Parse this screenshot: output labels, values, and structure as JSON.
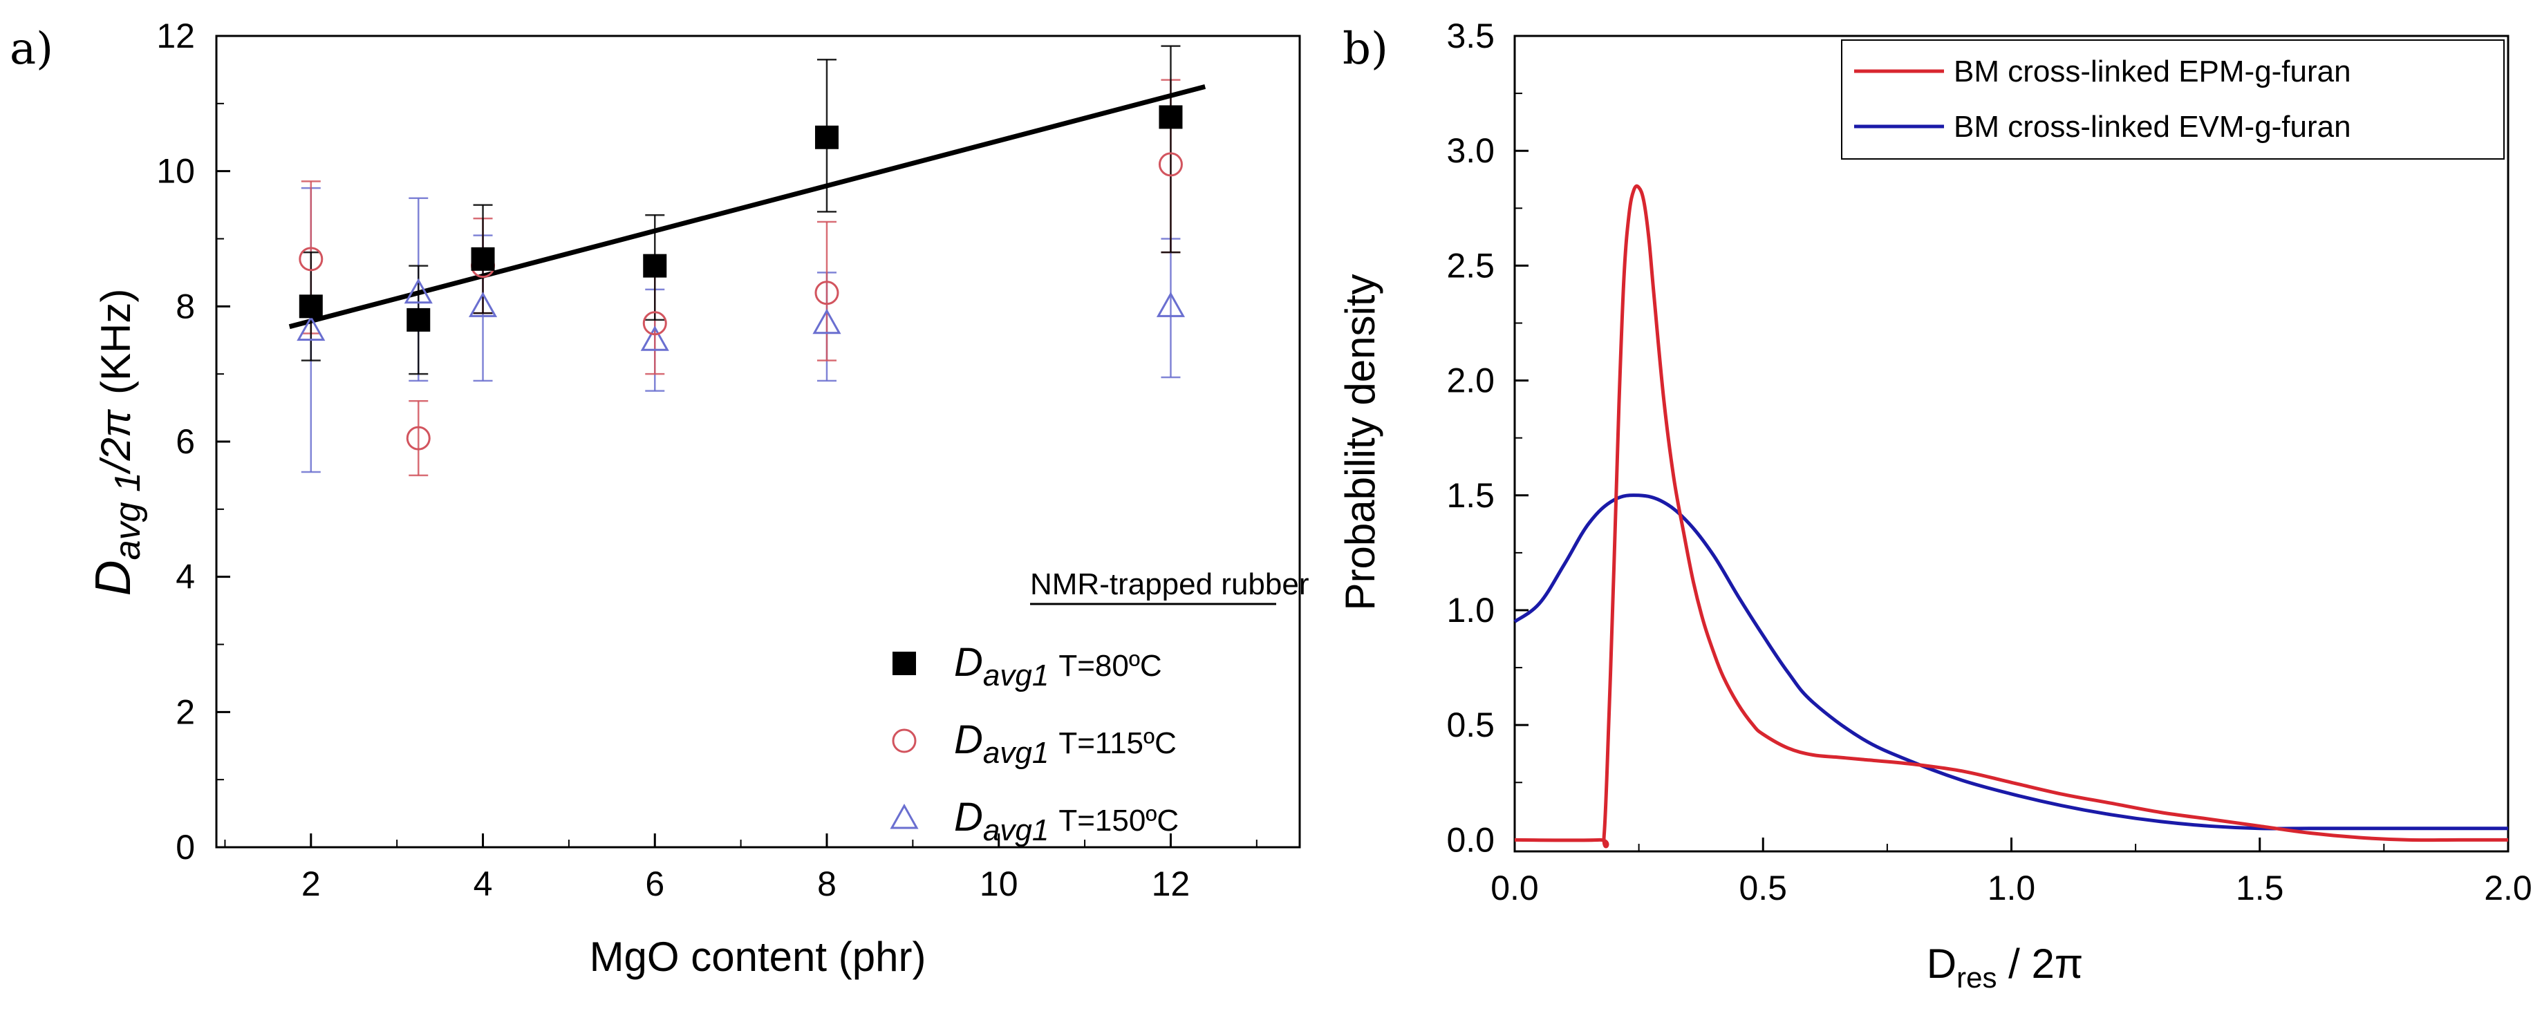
{
  "panels": {
    "a": {
      "panel_label": "a)",
      "legend_title": "NMR-trapped rubber",
      "ylabel": {
        "sym": "D",
        "sub1": "avg 1",
        "rest": "/2π",
        "unit": "(KHz)"
      },
      "legend": [
        {
          "sym": "D",
          "sub": "avg1",
          "label": "T=80ºC",
          "marker": "square"
        },
        {
          "sym": "D",
          "sub": "avg1",
          "label": "T=115ºC",
          "marker": "circle"
        },
        {
          "sym": "D",
          "sub": "avg1",
          "label": "T=150ºC",
          "marker": "triangle"
        }
      ]
    },
    "b": {
      "panel_label": "b)",
      "xlabel": {
        "main": "D",
        "sub": "res",
        "rest": " / 2π"
      }
    }
  },
  "colors": {
    "black": "#000000",
    "red": "#d2545e",
    "blue": "#6a6fd0",
    "curve_red": "#d8262f",
    "curve_blue": "#1a1aa8"
  },
  "chart_data": [
    {
      "type": "scatter",
      "title": "",
      "xlabel": "MgO content (phr)",
      "ylabel": "D avg 1 /2π (KHz)",
      "xlim": [
        0.9,
        13.5
      ],
      "ylim": [
        0,
        12
      ],
      "xticks": [
        2,
        4,
        6,
        8,
        10,
        12
      ],
      "yticks": [
        0,
        2,
        4,
        6,
        8,
        10,
        12
      ],
      "legend_position": "bottom-right",
      "series": [
        {
          "name": "D avg1 T=80ºC",
          "marker": "square",
          "color": "#000000",
          "x": [
            2,
            3.25,
            4,
            6,
            8,
            12
          ],
          "y": [
            8.0,
            7.8,
            8.7,
            8.6,
            10.5,
            10.8
          ],
          "err_low": [
            7.2,
            7.0,
            7.9,
            7.8,
            9.4,
            8.8
          ],
          "err_high": [
            8.8,
            8.6,
            9.5,
            9.35,
            11.65,
            11.85
          ]
        },
        {
          "name": "D avg1 T=115ºC",
          "marker": "circle",
          "color": "#d2545e",
          "x": [
            2,
            3.25,
            4,
            6,
            8,
            12
          ],
          "y": [
            8.7,
            6.05,
            8.6,
            7.75,
            8.2,
            10.1
          ],
          "err_low": [
            7.6,
            5.5,
            7.9,
            7.0,
            7.2,
            8.8
          ],
          "err_high": [
            9.85,
            6.6,
            9.3,
            8.5,
            9.25,
            11.35
          ]
        },
        {
          "name": "D avg1 T=150ºC",
          "marker": "triangle",
          "color": "#6a6fd0",
          "x": [
            2,
            3.25,
            4,
            6,
            8,
            12
          ],
          "y": [
            7.65,
            8.2,
            8.0,
            7.5,
            7.75,
            8.0
          ],
          "err_low": [
            5.55,
            6.9,
            6.9,
            6.75,
            6.9,
            6.95
          ],
          "err_high": [
            9.75,
            9.6,
            9.05,
            8.25,
            8.5,
            9.0
          ]
        }
      ],
      "fit_line": {
        "x": [
          1.75,
          12.4
        ],
        "y": [
          7.7,
          11.25
        ]
      }
    },
    {
      "type": "line",
      "title": "",
      "xlabel": "Dres / 2π",
      "ylabel": "Probability density",
      "xlim": [
        0,
        2.0
      ],
      "ylim": [
        -0.05,
        3.5
      ],
      "xticks": [
        0.0,
        0.5,
        1.0,
        1.5,
        2.0
      ],
      "yticks": [
        0.0,
        0.5,
        1.0,
        1.5,
        2.0,
        2.5,
        3.0,
        3.5
      ],
      "legend_position": "top-right",
      "series": [
        {
          "name": "BM cross-linked EPM-g-furan",
          "color": "#d8262f",
          "x": [
            0,
            0.17,
            0.18,
            0.19,
            0.2,
            0.21,
            0.22,
            0.23,
            0.24,
            0.25,
            0.26,
            0.27,
            0.28,
            0.3,
            0.32,
            0.34,
            0.36,
            0.38,
            0.4,
            0.42,
            0.45,
            0.48,
            0.5,
            0.55,
            0.6,
            0.65,
            0.7,
            0.8,
            0.9,
            1.0,
            1.1,
            1.2,
            1.3,
            1.4,
            1.5,
            1.6,
            1.7,
            1.8,
            1.9,
            2.0
          ],
          "y": [
            0,
            0,
            0.02,
            0.55,
            1.2,
            1.9,
            2.45,
            2.72,
            2.83,
            2.84,
            2.78,
            2.62,
            2.38,
            1.92,
            1.58,
            1.34,
            1.12,
            0.95,
            0.82,
            0.71,
            0.59,
            0.5,
            0.46,
            0.4,
            0.37,
            0.36,
            0.35,
            0.33,
            0.3,
            0.25,
            0.2,
            0.16,
            0.12,
            0.09,
            0.06,
            0.03,
            0.01,
            0.0,
            0.0,
            0.0
          ]
        },
        {
          "name": "BM cross-linked EVM-g-furan",
          "color": "#1a1aa8",
          "x": [
            0,
            0.05,
            0.1,
            0.15,
            0.2,
            0.25,
            0.3,
            0.35,
            0.4,
            0.45,
            0.5,
            0.55,
            0.6,
            0.7,
            0.8,
            0.9,
            1.0,
            1.1,
            1.2,
            1.3,
            1.4,
            1.5,
            1.6,
            1.7,
            1.8,
            1.9,
            2.0
          ],
          "y": [
            0.95,
            1.03,
            1.2,
            1.38,
            1.48,
            1.5,
            1.47,
            1.38,
            1.24,
            1.06,
            0.89,
            0.73,
            0.6,
            0.44,
            0.34,
            0.26,
            0.2,
            0.15,
            0.11,
            0.08,
            0.06,
            0.05,
            0.05,
            0.05,
            0.05,
            0.05,
            0.05
          ]
        }
      ]
    }
  ]
}
